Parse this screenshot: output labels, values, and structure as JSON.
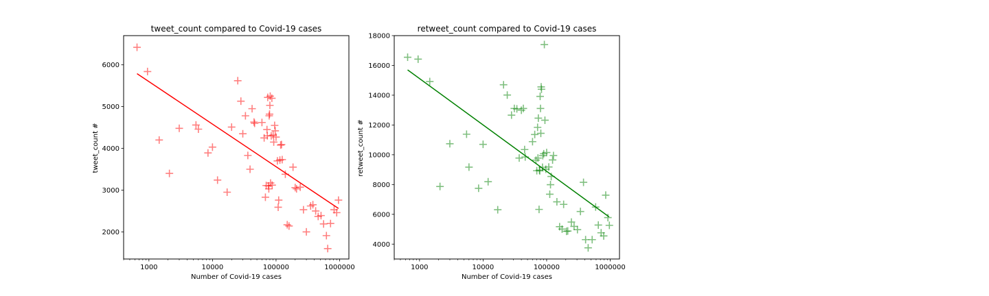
{
  "chart_data": [
    {
      "type": "scatter",
      "title": "tweet_count compared to Covid-19 cases",
      "xlabel": "Number of Covid-19 cases",
      "ylabel": "tweet_count #",
      "x_scale": "log",
      "xlim": [
        400,
        1400000
      ],
      "ylim": [
        1350,
        6700
      ],
      "x_ticks": [
        1000,
        10000,
        100000,
        1000000
      ],
      "x_tick_labels": [
        "1000",
        "10000",
        "100000",
        "1000000"
      ],
      "y_ticks": [
        2000,
        3000,
        4000,
        5000,
        6000
      ],
      "y_tick_labels": [
        "2000",
        "3000",
        "4000",
        "5000",
        "6000"
      ],
      "marker": "+",
      "color": "#ff0000",
      "points": [
        [
          650,
          6420
        ],
        [
          950,
          5840
        ],
        [
          1450,
          4200
        ],
        [
          2100,
          3400
        ],
        [
          3000,
          4480
        ],
        [
          5500,
          4560
        ],
        [
          6000,
          4460
        ],
        [
          8500,
          3890
        ],
        [
          10000,
          4030
        ],
        [
          12000,
          3240
        ],
        [
          17000,
          2950
        ],
        [
          20000,
          4510
        ],
        [
          25000,
          5620
        ],
        [
          28000,
          5130
        ],
        [
          30000,
          4350
        ],
        [
          33000,
          4780
        ],
        [
          36000,
          3830
        ],
        [
          39000,
          3500
        ],
        [
          42000,
          4950
        ],
        [
          45000,
          4630
        ],
        [
          46000,
          4600
        ],
        [
          60000,
          4620
        ],
        [
          65000,
          4250
        ],
        [
          68000,
          2830
        ],
        [
          70000,
          3110
        ],
        [
          72000,
          4450
        ],
        [
          73000,
          4300
        ],
        [
          74000,
          5220
        ],
        [
          76000,
          3100
        ],
        [
          77000,
          3030
        ],
        [
          78000,
          4780
        ],
        [
          79000,
          4820
        ],
        [
          80000,
          5030
        ],
        [
          81000,
          5250
        ],
        [
          82000,
          3170
        ],
        [
          84000,
          4300
        ],
        [
          86000,
          5200
        ],
        [
          87000,
          3120
        ],
        [
          90000,
          4320
        ],
        [
          92000,
          4150
        ],
        [
          95000,
          4550
        ],
        [
          97000,
          4420
        ],
        [
          100000,
          4270
        ],
        [
          105000,
          3700
        ],
        [
          108000,
          2590
        ],
        [
          110000,
          2760
        ],
        [
          115000,
          3720
        ],
        [
          118000,
          4080
        ],
        [
          122000,
          4090
        ],
        [
          125000,
          3730
        ],
        [
          140000,
          3380
        ],
        [
          150000,
          2170
        ],
        [
          160000,
          2140
        ],
        [
          185000,
          3550
        ],
        [
          200000,
          3060
        ],
        [
          210000,
          3030
        ],
        [
          240000,
          3070
        ],
        [
          270000,
          2530
        ],
        [
          300000,
          2000
        ],
        [
          350000,
          2620
        ],
        [
          380000,
          2650
        ],
        [
          420000,
          2500
        ],
        [
          460000,
          2370
        ],
        [
          510000,
          2390
        ],
        [
          560000,
          2190
        ],
        [
          620000,
          1910
        ],
        [
          650000,
          1600
        ],
        [
          720000,
          2200
        ],
        [
          820000,
          2530
        ],
        [
          900000,
          2460
        ],
        [
          960000,
          2760
        ]
      ],
      "fit_line": [
        [
          650,
          5790
        ],
        [
          960000,
          2560
        ]
      ]
    },
    {
      "type": "scatter",
      "title": "retweet_count compared to Covid-19 cases",
      "xlabel": "Number of Covid-19 cases",
      "ylabel": "retweet_count #",
      "x_scale": "log",
      "xlim": [
        400,
        1400000
      ],
      "ylim": [
        3000,
        18000
      ],
      "x_ticks": [
        1000,
        10000,
        100000,
        1000000
      ],
      "x_tick_labels": [
        "1000",
        "10000",
        "100000",
        "1000000"
      ],
      "y_ticks": [
        4000,
        6000,
        8000,
        10000,
        12000,
        14000,
        16000,
        18000
      ],
      "y_tick_labels": [
        "4000",
        "6000",
        "8000",
        "10000",
        "12000",
        "14000",
        "16000",
        "18000"
      ],
      "marker": "+",
      "color": "#008000",
      "points": [
        [
          650,
          16550
        ],
        [
          950,
          16420
        ],
        [
          1450,
          14920
        ],
        [
          2100,
          7870
        ],
        [
          3000,
          10740
        ],
        [
          5500,
          11380
        ],
        [
          6000,
          9170
        ],
        [
          8500,
          7750
        ],
        [
          10000,
          10700
        ],
        [
          12000,
          8190
        ],
        [
          17000,
          6310
        ],
        [
          21000,
          14700
        ],
        [
          24000,
          14010
        ],
        [
          28000,
          12660
        ],
        [
          31000,
          13110
        ],
        [
          34000,
          13080
        ],
        [
          37000,
          9780
        ],
        [
          40000,
          12990
        ],
        [
          43000,
          13110
        ],
        [
          45000,
          10350
        ],
        [
          46000,
          9850
        ],
        [
          60000,
          10880
        ],
        [
          65000,
          11360
        ],
        [
          68000,
          9640
        ],
        [
          70000,
          8930
        ],
        [
          72000,
          11840
        ],
        [
          73000,
          9780
        ],
        [
          74000,
          12460
        ],
        [
          76000,
          6330
        ],
        [
          77000,
          8970
        ],
        [
          78000,
          8920
        ],
        [
          79000,
          13920
        ],
        [
          80000,
          13110
        ],
        [
          81000,
          11440
        ],
        [
          82000,
          14560
        ],
        [
          83000,
          14400
        ],
        [
          86000,
          9160
        ],
        [
          87000,
          9940
        ],
        [
          90000,
          10070
        ],
        [
          92000,
          17400
        ],
        [
          94000,
          12320
        ],
        [
          97000,
          9030
        ],
        [
          100000,
          10150
        ],
        [
          108000,
          9180
        ],
        [
          112000,
          7350
        ],
        [
          115000,
          7990
        ],
        [
          118000,
          8540
        ],
        [
          124000,
          9650
        ],
        [
          128000,
          9950
        ],
        [
          145000,
          6840
        ],
        [
          160000,
          5170
        ],
        [
          175000,
          5010
        ],
        [
          185000,
          6670
        ],
        [
          205000,
          4860
        ],
        [
          215000,
          4880
        ],
        [
          245000,
          5480
        ],
        [
          270000,
          5190
        ],
        [
          305000,
          4970
        ],
        [
          340000,
          6190
        ],
        [
          380000,
          8150
        ],
        [
          410000,
          4300
        ],
        [
          450000,
          3750
        ],
        [
          520000,
          4300
        ],
        [
          590000,
          6490
        ],
        [
          650000,
          5280
        ],
        [
          720000,
          4760
        ],
        [
          790000,
          4550
        ],
        [
          850000,
          7290
        ],
        [
          920000,
          5780
        ],
        [
          970000,
          5260
        ]
      ],
      "fit_line": [
        [
          650,
          15700
        ],
        [
          960000,
          5830
        ]
      ]
    }
  ]
}
